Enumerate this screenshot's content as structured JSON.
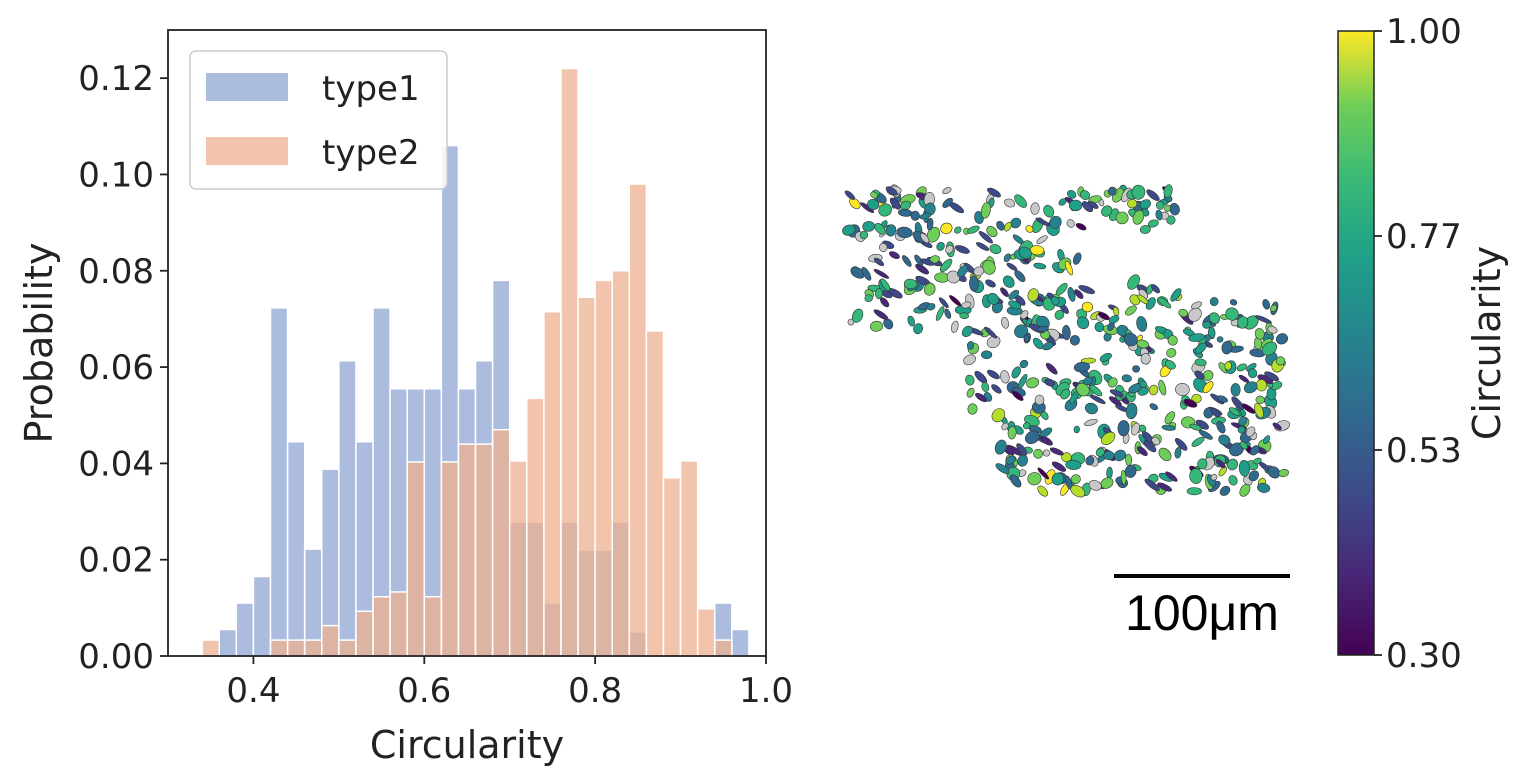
{
  "chart_data": [
    {
      "type": "bar",
      "subtype": "histogram",
      "xlabel": "Circularity",
      "ylabel": "Probability",
      "xlim": [
        0.3,
        1.0
      ],
      "ylim": [
        0.0,
        0.13
      ],
      "xticks": [
        "0.4",
        "0.6",
        "0.8",
        "1.0"
      ],
      "yticks": [
        "0.00",
        "0.02",
        "0.04",
        "0.06",
        "0.08",
        "0.10",
        "0.12"
      ],
      "bin_edges": [
        0.34,
        0.36,
        0.38,
        0.4,
        0.42,
        0.44,
        0.46,
        0.48,
        0.5,
        0.52,
        0.54,
        0.56,
        0.58,
        0.6,
        0.62,
        0.64,
        0.66,
        0.68,
        0.7,
        0.72,
        0.74,
        0.76,
        0.78,
        0.8,
        0.82,
        0.84,
        0.86,
        0.88,
        0.9,
        0.92,
        0.94,
        0.96,
        0.98
      ],
      "legend_position": "upper-left",
      "series": [
        {
          "name": "type1",
          "color": "#8fa6d3",
          "values": [
            0.0,
            0.0055,
            0.011,
            0.0165,
            0.0723,
            0.0445,
            0.0222,
            0.0388,
            0.0613,
            0.0445,
            0.0723,
            0.0555,
            0.0555,
            0.0555,
            0.106,
            0.0555,
            0.0613,
            0.078,
            0.0278,
            0.0278,
            0.011,
            0.0278,
            0.022,
            0.022,
            0.0278,
            0.005,
            0.0,
            0.0,
            0.0,
            0.0,
            0.011,
            0.0055
          ]
        },
        {
          "name": "type2",
          "color": "#edb08f",
          "values": [
            0.0033,
            0.0,
            0.0,
            0.0,
            0.0033,
            0.0033,
            0.0033,
            0.0063,
            0.0033,
            0.0093,
            0.0123,
            0.0133,
            0.0403,
            0.0123,
            0.0403,
            0.044,
            0.044,
            0.047,
            0.0405,
            0.0535,
            0.0715,
            0.122,
            0.0745,
            0.078,
            0.08,
            0.098,
            0.0675,
            0.037,
            0.0405,
            0.0098,
            0.0033,
            0.0
          ]
        }
      ]
    },
    {
      "type": "heatmap",
      "subtype": "spatial-map-with-colorbar",
      "colorbar_label": "Circularity",
      "colorbar_ticks": [
        "1.00",
        "0.77",
        "0.53",
        "0.30"
      ],
      "colorbar_range": [
        0.3,
        1.0
      ],
      "colormap": "viridis",
      "scalebar_label": "100μm"
    }
  ]
}
